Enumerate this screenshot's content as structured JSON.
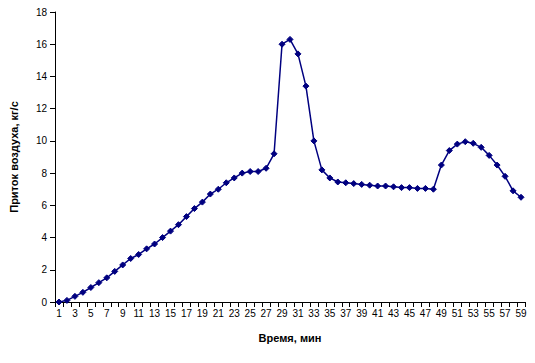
{
  "chart_data": {
    "type": "line",
    "x_label": "Время, мин",
    "y_label": "Приток воздуха, кг/с",
    "categories": [
      "1",
      null,
      "3",
      null,
      "5",
      null,
      "7",
      null,
      "9",
      null,
      "11",
      null,
      "13",
      null,
      "15",
      null,
      "17",
      null,
      "19",
      null,
      "21",
      null,
      "23",
      null,
      "25",
      null,
      "27",
      null,
      "29",
      null,
      "31",
      null,
      "33",
      null,
      "35",
      null,
      "37",
      null,
      "39",
      null,
      "41",
      null,
      "43",
      null,
      "45",
      null,
      "47",
      null,
      "49",
      null,
      "51",
      null,
      "53",
      null,
      "55",
      null,
      "57",
      null,
      "59"
    ],
    "values": [
      0,
      0.1,
      0.35,
      0.6,
      0.9,
      1.2,
      1.5,
      1.9,
      2.3,
      2.7,
      2.95,
      3.3,
      3.6,
      4.0,
      4.4,
      4.8,
      5.3,
      5.8,
      6.2,
      6.7,
      7.0,
      7.4,
      7.7,
      8.0,
      8.1,
      8.1,
      8.3,
      9.2,
      16.0,
      16.3,
      15.4,
      13.4,
      10.0,
      8.2,
      7.7,
      7.45,
      7.4,
      7.35,
      7.3,
      7.25,
      7.2,
      7.2,
      7.15,
      7.1,
      7.1,
      7.05,
      7.05,
      7.0,
      8.5,
      9.4,
      9.8,
      9.95,
      9.85,
      9.6,
      9.1,
      8.5,
      7.8,
      6.9,
      6.5
    ],
    "color": "#000080",
    "marker": "diamond",
    "ylim": [
      0,
      18
    ],
    "yticks": [
      0,
      2,
      4,
      6,
      8,
      10,
      12,
      14,
      16,
      18
    ],
    "grid": false
  }
}
